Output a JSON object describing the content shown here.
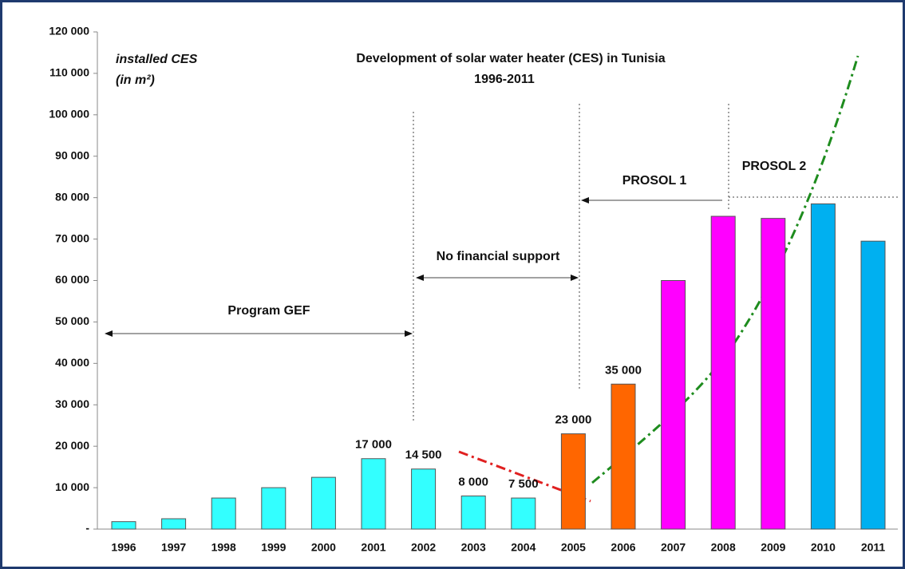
{
  "chart_data": {
    "type": "bar",
    "title": "Development of solar water heater (CES) in Tunisia",
    "subtitle": "1996-2011",
    "y_label_line1": "installed CES",
    "y_label_line2": "(in m²)",
    "annotations": [
      "Program GEF",
      "No financial support",
      "PROSOL 1",
      "PROSOL 2"
    ],
    "categories": [
      "1996",
      "1997",
      "1998",
      "1999",
      "2000",
      "2001",
      "2002",
      "2003",
      "2004",
      "2005",
      "2006",
      "2007",
      "2008",
      "2009",
      "2010",
      "2011"
    ],
    "values": [
      1800,
      2500,
      7500,
      10000,
      12500,
      17000,
      14500,
      8000,
      7500,
      23000,
      35000,
      60000,
      75500,
      75000,
      78500,
      69500
    ],
    "value_labels": [
      null,
      null,
      null,
      null,
      null,
      "17 000",
      "14 500",
      "8 000",
      "7 500",
      "23 000",
      "35 000",
      null,
      null,
      null,
      null,
      null
    ],
    "colors": [
      "#33ffff",
      "#33ffff",
      "#33ffff",
      "#33ffff",
      "#33ffff",
      "#33ffff",
      "#33ffff",
      "#33ffff",
      "#33ffff",
      "#ff6600",
      "#ff6600",
      "#ff00ff",
      "#ff00ff",
      "#ff00ff",
      "#00b0f0",
      "#00b0f0"
    ],
    "ylim": [
      0,
      120000
    ],
    "yticks": [
      {
        "value": 0,
        "label": "-"
      },
      {
        "value": 10000,
        "label": "10 000"
      },
      {
        "value": 20000,
        "label": "20 000"
      },
      {
        "value": 30000,
        "label": "30 000"
      },
      {
        "value": 40000,
        "label": "40 000"
      },
      {
        "value": 50000,
        "label": "50 000"
      },
      {
        "value": 60000,
        "label": "60 000"
      },
      {
        "value": 70000,
        "label": "70 000"
      },
      {
        "value": 80000,
        "label": "80 000"
      },
      {
        "value": 90000,
        "label": "90 000"
      },
      {
        "value": 100000,
        "label": "100 000"
      },
      {
        "value": 110000,
        "label": "110 000"
      },
      {
        "value": 120000,
        "label": "120 000"
      }
    ],
    "grid": false
  }
}
